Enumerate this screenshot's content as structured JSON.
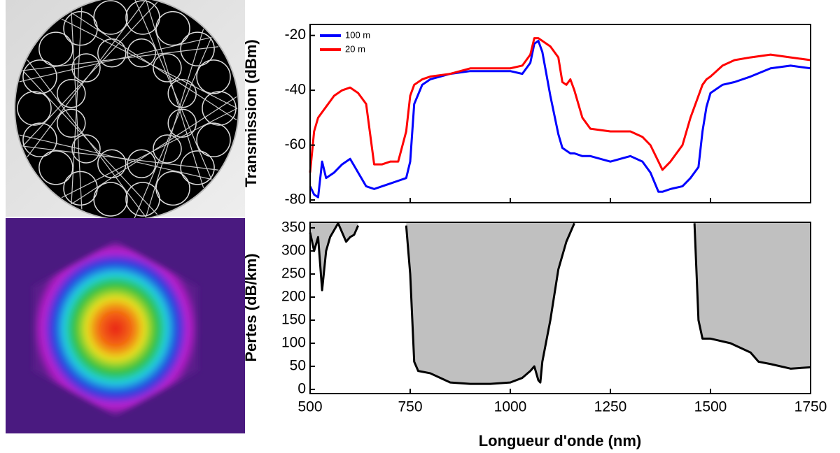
{
  "chart_data": [
    {
      "type": "line",
      "ylabel": "Transmission (dBm)",
      "xlim": [
        500,
        1750
      ],
      "ylim": [
        -81,
        -16
      ],
      "yticks": [
        -20,
        -40,
        -60,
        -80
      ],
      "legend": "upper left",
      "x": [
        500,
        510,
        520,
        530,
        540,
        550,
        560,
        580,
        600,
        620,
        640,
        660,
        680,
        700,
        720,
        740,
        750,
        760,
        780,
        800,
        850,
        900,
        950,
        1000,
        1030,
        1050,
        1060,
        1070,
        1080,
        1100,
        1120,
        1130,
        1140,
        1150,
        1160,
        1180,
        1200,
        1250,
        1300,
        1330,
        1350,
        1370,
        1380,
        1400,
        1430,
        1450,
        1470,
        1480,
        1490,
        1500,
        1530,
        1560,
        1600,
        1650,
        1700,
        1750
      ],
      "series": [
        {
          "name": "100 m",
          "color": "#0000ff",
          "values": [
            -75,
            -78,
            -79,
            -66,
            -72,
            -71,
            -70,
            -67,
            -65,
            -70,
            -75,
            -76,
            -75,
            -74,
            -73,
            -72,
            -66,
            -45,
            -38,
            -36,
            -34,
            -33,
            -33,
            -33,
            -34,
            -30,
            -23,
            -22,
            -26,
            -42,
            -56,
            -61,
            -62,
            -63,
            -63,
            -64,
            -64,
            -66,
            -64,
            -66,
            -70,
            -77,
            -77,
            -76,
            -75,
            -72,
            -68,
            -55,
            -46,
            -41,
            -38,
            -37,
            -35,
            -32,
            -31,
            -32
          ]
        },
        {
          "name": "20 m",
          "color": "#ff0000",
          "values": [
            -70,
            -55,
            -50,
            -48,
            -46,
            -44,
            -42,
            -40,
            -39,
            -41,
            -45,
            -67,
            -67,
            -66,
            -66,
            -55,
            -42,
            -38,
            -36,
            -35,
            -34,
            -32,
            -32,
            -32,
            -31,
            -27,
            -21,
            -21,
            -22,
            -24,
            -28,
            -37,
            -38,
            -36,
            -40,
            -50,
            -54,
            -55,
            -55,
            -57,
            -60,
            -66,
            -69,
            -66,
            -60,
            -50,
            -42,
            -38,
            -36,
            -35,
            -31,
            -29,
            -28,
            -27,
            -28,
            -29
          ]
        }
      ]
    },
    {
      "type": "line",
      "ylabel": "Pertes (dB/km)",
      "xlabel": "Longueur d'onde (nm)",
      "xlim": [
        500,
        1750
      ],
      "xticks": [
        500,
        750,
        1000,
        1250,
        1500,
        1750
      ],
      "ylim": [
        -9,
        362
      ],
      "yticks": [
        0,
        50,
        100,
        150,
        200,
        250,
        300,
        350
      ],
      "area_color": "#c0c0c0",
      "x": [
        500,
        510,
        520,
        530,
        540,
        550,
        570,
        590,
        600,
        610,
        620,
        630,
        740,
        750,
        760,
        770,
        800,
        850,
        900,
        950,
        1000,
        1030,
        1050,
        1060,
        1070,
        1075,
        1080,
        1100,
        1120,
        1140,
        1160,
        1170,
        1460,
        1470,
        1480,
        1500,
        1550,
        1600,
        1620,
        1650,
        1700,
        1750
      ],
      "series": [
        {
          "color": "#000000",
          "values": [
            340,
            300,
            330,
            215,
            300,
            330,
            360,
            320,
            330,
            335,
            355,
            null,
            355,
            250,
            60,
            40,
            35,
            15,
            12,
            12,
            15,
            25,
            40,
            50,
            20,
            15,
            60,
            150,
            260,
            320,
            360,
            null,
            360,
            150,
            110,
            110,
            100,
            80,
            60,
            55,
            45,
            48
          ]
        }
      ]
    }
  ]
}
